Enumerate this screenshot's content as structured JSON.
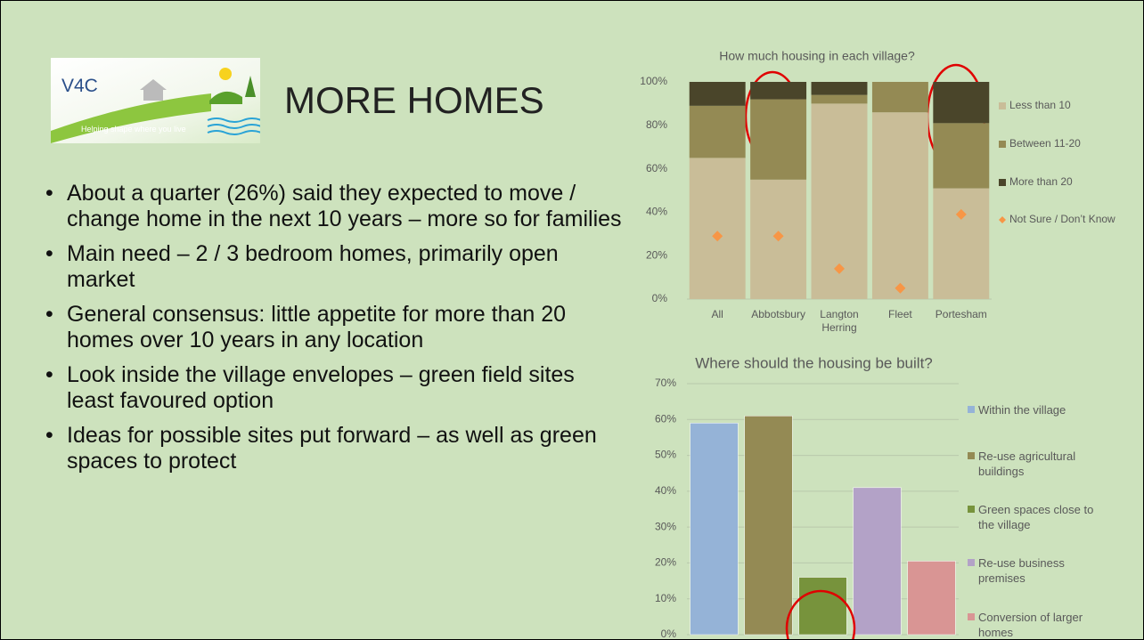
{
  "logo": {
    "text": "V4C",
    "tagline": "Helping shape where you live"
  },
  "title": "MORE HOMES",
  "bullets": [
    "About a quarter (26%) said they expected to move / change home in the next 10 years – more so for families",
    "Main need – 2 / 3 bedroom homes, primarily open market",
    "General consensus: little appetite for more than 20 homes over 10 years in any location",
    "Look inside the village envelopes – green field sites least favoured option",
    "Ideas for possible sites put forward – as well as green spaces to protect"
  ],
  "chart_data": [
    {
      "type": "stacked_bar",
      "title": "How much housing in each village?",
      "categories": [
        "All",
        "Abbotsbury",
        "Langton Herring",
        "Fleet",
        "Portesham"
      ],
      "series": [
        {
          "name": "Less than 10",
          "color": "#c9bd98",
          "values": [
            65,
            55,
            90,
            86,
            51
          ]
        },
        {
          "name": "Between 11-20",
          "color": "#948a54",
          "values": [
            24,
            37,
            4,
            14,
            30
          ]
        },
        {
          "name": "More than 20",
          "color": "#4a452a",
          "values": [
            11,
            8,
            6,
            0,
            19
          ]
        },
        {
          "name": "Not Sure / Don’t Know",
          "color": "#f79646",
          "type": "scatter",
          "values": [
            29,
            29,
            14,
            5,
            39
          ]
        }
      ],
      "ylim": [
        0,
        100
      ],
      "yticks": [
        {
          "value": 0,
          "label": "0%"
        },
        {
          "value": 20,
          "label": "20%"
        },
        {
          "value": 40,
          "label": "40%"
        },
        {
          "value": 60,
          "label": "60%"
        },
        {
          "value": 80,
          "label": "80%"
        },
        {
          "value": 100,
          "label": "100%"
        }
      ],
      "grid": false
    },
    {
      "type": "bar",
      "title": "Where should the housing be built?",
      "series": [
        {
          "name": "Within the village",
          "color": "#95b3d7",
          "values": [
            59
          ]
        },
        {
          "name": "Re-use agricultural buildings",
          "color": "#948a54",
          "values": [
            61
          ]
        },
        {
          "name": "Green spaces close to the village",
          "color": "#77933c",
          "values": [
            16
          ]
        },
        {
          "name": "Re-use business premises",
          "color": "#b3a2c7",
          "values": [
            41
          ]
        },
        {
          "name": "Conversion of larger homes",
          "color": "#d99594",
          "values": [
            20.5
          ]
        }
      ],
      "ylim": [
        0,
        70
      ],
      "yticks": [
        {
          "value": 0,
          "label": "0%"
        },
        {
          "value": 10,
          "label": "10%"
        },
        {
          "value": 20,
          "label": "20%"
        },
        {
          "value": 30,
          "label": "30%"
        },
        {
          "value": 40,
          "label": "40%"
        },
        {
          "value": 50,
          "label": "50%"
        },
        {
          "value": 60,
          "label": "60%"
        },
        {
          "value": 70,
          "label": "70%"
        }
      ],
      "grid": true
    }
  ]
}
